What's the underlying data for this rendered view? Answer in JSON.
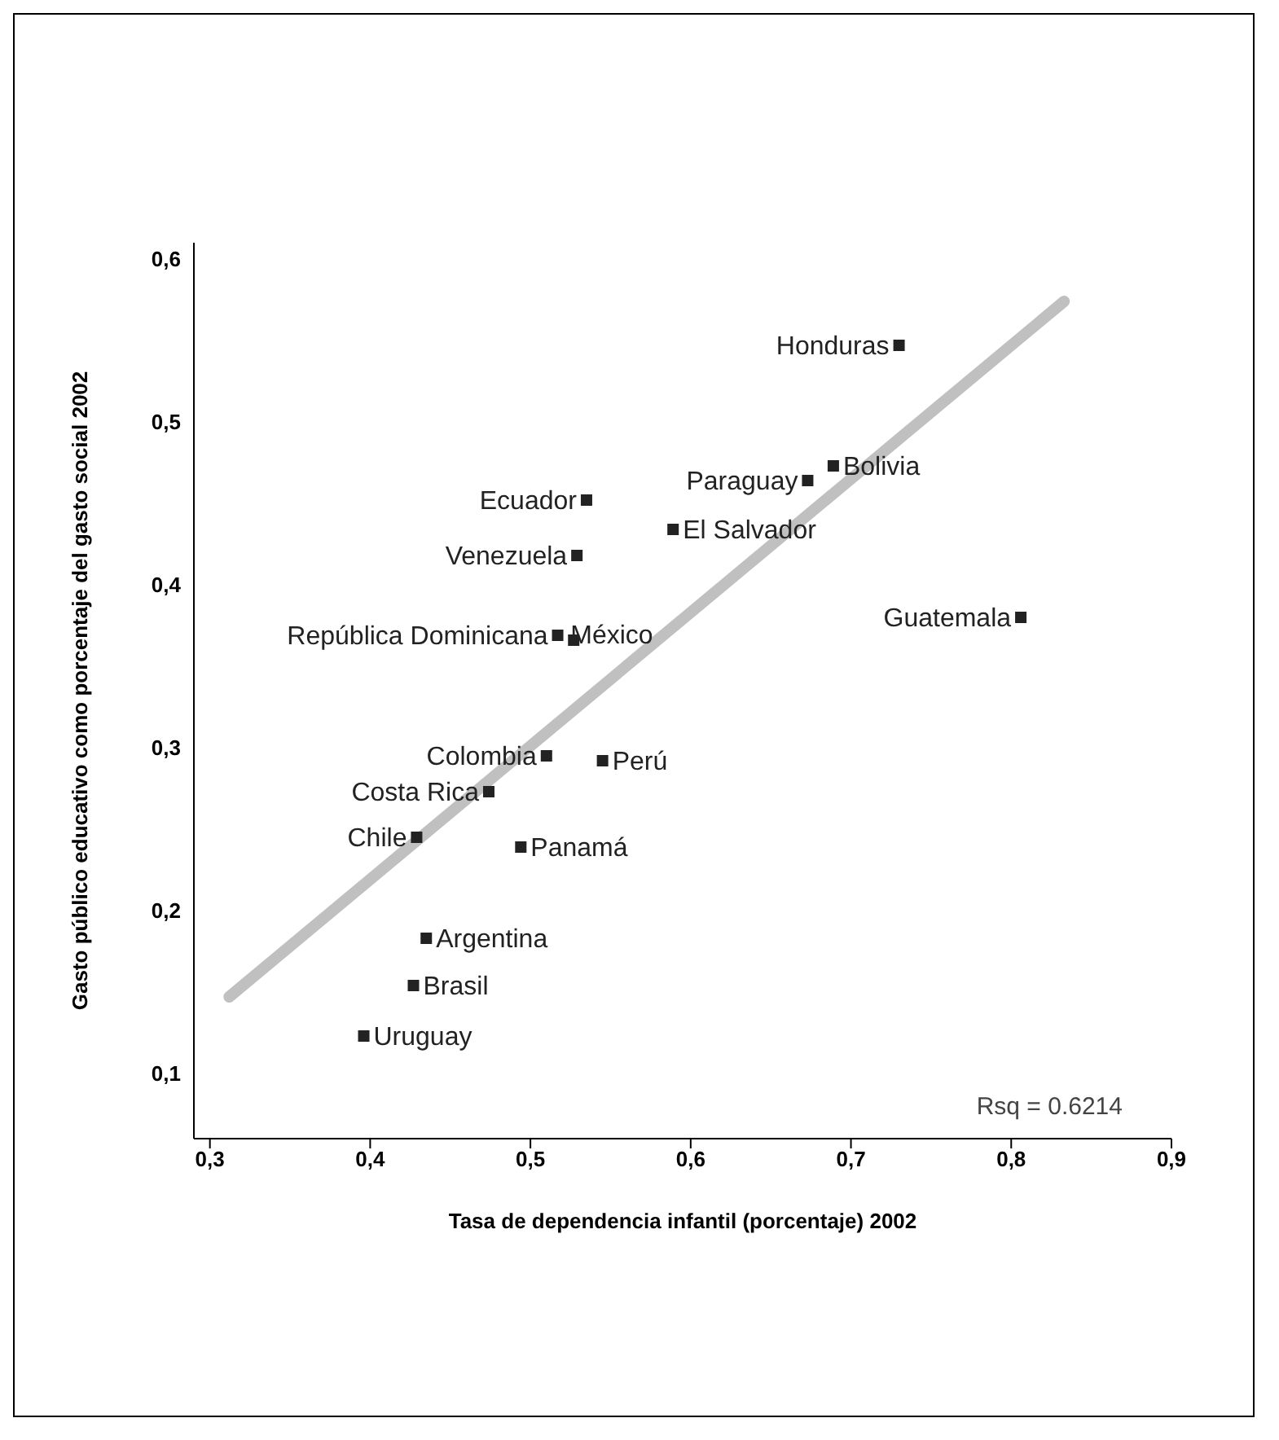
{
  "chart_data": {
    "type": "scatter",
    "xlabel": "Tasa de dependencia infantil (porcentaje) 2002",
    "ylabel": "Gasto público educativo como porcentaje del gasto social 2002",
    "xlim": [
      0.29,
      0.9
    ],
    "xticks": [
      {
        "value": 0.3,
        "label": "0,3"
      },
      {
        "value": 0.4,
        "label": "0,4"
      },
      {
        "value": 0.5,
        "label": "0,5"
      },
      {
        "value": 0.6,
        "label": "0,6"
      },
      {
        "value": 0.7,
        "label": "0,7"
      },
      {
        "value": 0.8,
        "label": "0,8"
      },
      {
        "value": 0.9,
        "label": "0,9"
      }
    ],
    "ylim": [
      0.06,
      0.61
    ],
    "yticks": [
      {
        "value": 0.1,
        "label": "0,1"
      },
      {
        "value": 0.2,
        "label": "0,2"
      },
      {
        "value": 0.3,
        "label": "0,3"
      },
      {
        "value": 0.4,
        "label": "0,4"
      },
      {
        "value": 0.5,
        "label": "0,5"
      },
      {
        "value": 0.6,
        "label": "0,6"
      }
    ],
    "grid": false,
    "legend": false,
    "marker": "square",
    "series": [
      {
        "color": "#222222",
        "x": [
          0.73,
          0.689,
          0.673,
          0.589,
          0.806,
          0.535,
          0.529,
          0.517,
          0.527,
          0.51,
          0.545,
          0.474,
          0.429,
          0.494,
          0.435,
          0.427,
          0.396
        ],
        "values": [
          0.547,
          0.473,
          0.464,
          0.434,
          0.38,
          0.452,
          0.418,
          0.369,
          0.366,
          0.295,
          0.292,
          0.273,
          0.245,
          0.239,
          0.183,
          0.154,
          0.123
        ]
      },
      {
        "type": "line",
        "color": "#c0c0c0",
        "marker": "none",
        "x": [
          0.312,
          0.833
        ],
        "values": [
          0.147,
          0.574
        ]
      }
    ],
    "annotations": [
      {
        "text": "Honduras",
        "x": 0.73,
        "y": 0.547
      },
      {
        "text": "Bolivia",
        "x": 0.689,
        "y": 0.473
      },
      {
        "text": "Paraguay",
        "x": 0.673,
        "y": 0.464
      },
      {
        "text": "El Salvador",
        "x": 0.589,
        "y": 0.434
      },
      {
        "text": "Guatemala",
        "x": 0.806,
        "y": 0.38
      },
      {
        "text": "Ecuador",
        "x": 0.535,
        "y": 0.452
      },
      {
        "text": "Venezuela",
        "x": 0.529,
        "y": 0.418
      },
      {
        "text": "República Dominicana",
        "x": 0.517,
        "y": 0.369
      },
      {
        "text": "México",
        "x": 0.527,
        "y": 0.366
      },
      {
        "text": "Colombia",
        "x": 0.51,
        "y": 0.295
      },
      {
        "text": "Perú",
        "x": 0.545,
        "y": 0.292
      },
      {
        "text": "Costa Rica",
        "x": 0.474,
        "y": 0.273
      },
      {
        "text": "Chile",
        "x": 0.429,
        "y": 0.245
      },
      {
        "text": "Panamá",
        "x": 0.494,
        "y": 0.239
      },
      {
        "text": "Argentina",
        "x": 0.435,
        "y": 0.183
      },
      {
        "text": "Brasil",
        "x": 0.427,
        "y": 0.154
      },
      {
        "text": "Uruguay",
        "x": 0.396,
        "y": 0.123
      },
      "Rsq = 0.6214"
    ]
  }
}
